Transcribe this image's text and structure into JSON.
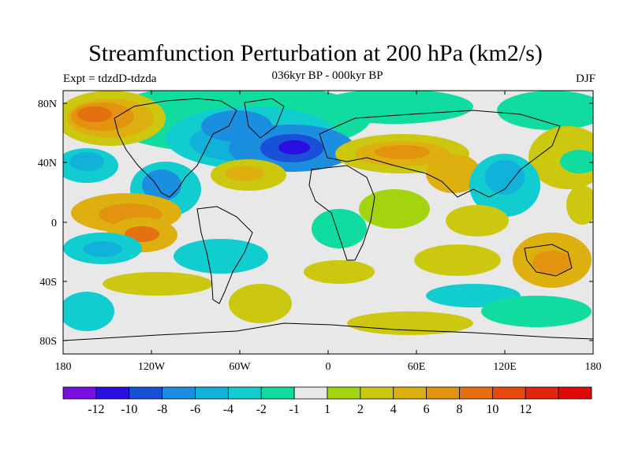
{
  "title": "Streamfunction Perturbation at 200 hPa (km2/s)",
  "left_label": "Expt = tdzdD-tdzda",
  "center_label": "036kyr BP - 000kyr BP",
  "right_label": "DJF",
  "lat_ticks": [
    "80N",
    "40N",
    "0",
    "40S",
    "80S"
  ],
  "lon_ticks": [
    "180",
    "120W",
    "60W",
    "0",
    "60E",
    "120E",
    "180"
  ],
  "colorbar": {
    "colors": [
      "#7a10e0",
      "#2a10e0",
      "#1a4fd8",
      "#1b8ee0",
      "#11b2da",
      "#12cdd0",
      "#10dca0",
      "#e8e8e8",
      "#a4d410",
      "#ccc810",
      "#ddb010",
      "#e29410",
      "#e47010",
      "#e44a10",
      "#e22410",
      "#e00a0a"
    ],
    "labels": [
      "-12",
      "-10",
      "-8",
      "-6",
      "-4",
      "-2",
      "-1",
      "1",
      "2",
      "4",
      "6",
      "8",
      "10",
      "12"
    ]
  }
}
